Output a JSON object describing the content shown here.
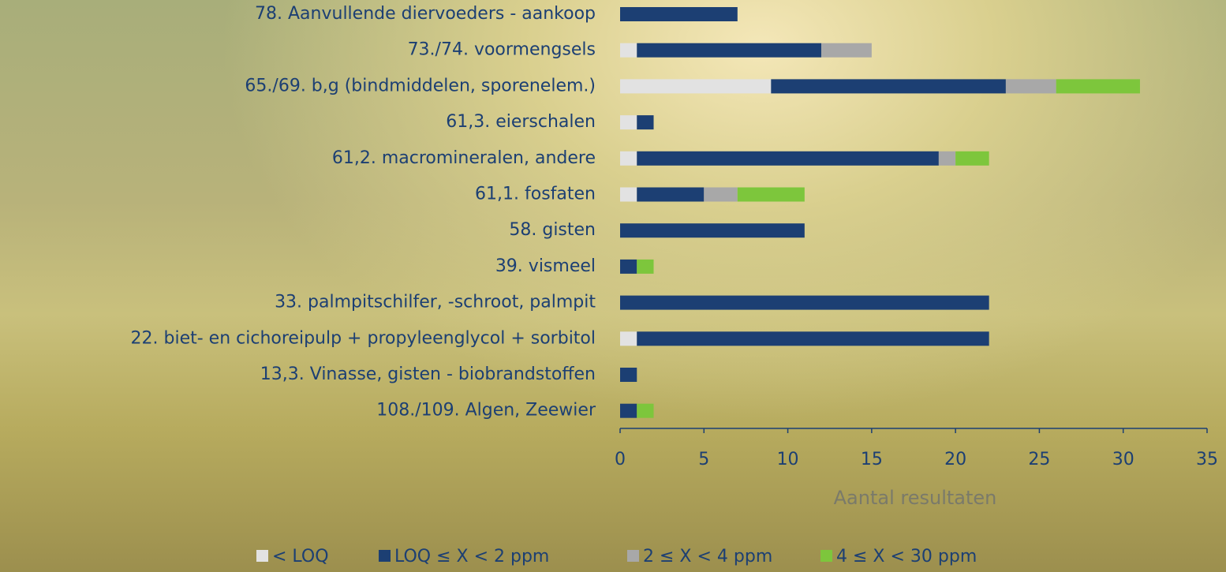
{
  "chart_data": {
    "type": "stacked-barh",
    "categories": [
      "78. Aanvullende diervoeders - aankoop",
      "73./74. voormengsels",
      "65./69. b,g (bindmiddelen, sporenelem.)",
      "61,3. eierschalen",
      "61,2. macromineralen, andere",
      "61,1. fosfaten",
      "58. gisten",
      "39. vismeel",
      "33. palmpitschilfer, -schroot, palmpit",
      "22. biet- en cichoreipulp + propyleenglycol + sorbitol",
      "13,3. Vinasse, gisten - biobrandstoffen",
      "108./109. Algen, Zeewier"
    ],
    "series": [
      {
        "name": "< LOQ",
        "color": "#e2e2e2",
        "values": [
          0,
          1,
          9,
          1,
          1,
          1,
          0,
          0,
          0,
          1,
          0,
          0
        ]
      },
      {
        "name": "LOQ ≤ X < 2 ppm",
        "color": "#1c3f73",
        "values": [
          7,
          11,
          14,
          1,
          18,
          4,
          11,
          1,
          22,
          21,
          1,
          1
        ]
      },
      {
        "name": "2 ≤ X < 4 ppm",
        "color": "#a8a8a8",
        "values": [
          0,
          3,
          3,
          0,
          1,
          2,
          0,
          0,
          0,
          0,
          0,
          0
        ]
      },
      {
        "name": "4 ≤ X < 30 ppm",
        "color": "#7dc63c",
        "values": [
          0,
          0,
          5,
          0,
          2,
          4,
          0,
          1,
          0,
          0,
          0,
          1
        ]
      }
    ],
    "xlabel": "Aantal resultaten",
    "xlim": [
      0,
      35
    ],
    "xticks": [
      0,
      5,
      10,
      15,
      20,
      25,
      30,
      35
    ]
  }
}
